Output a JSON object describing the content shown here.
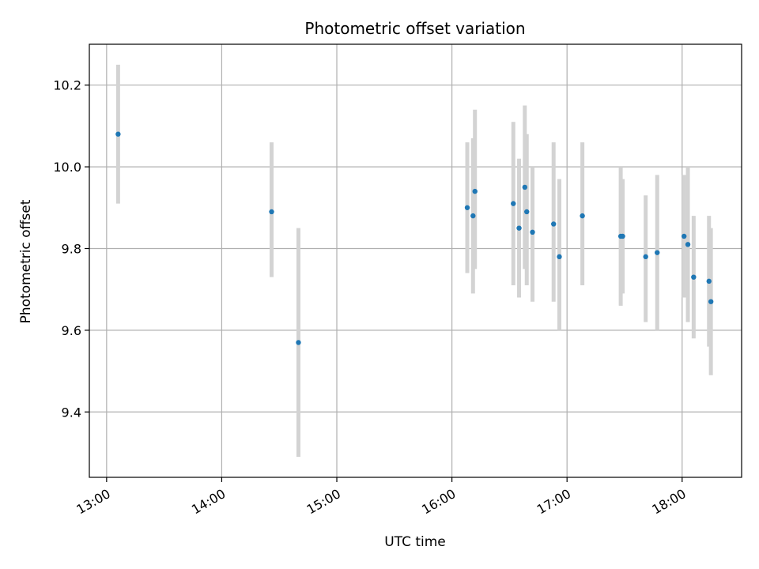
{
  "chart_data": {
    "type": "scatter",
    "title": "Photometric offset variation",
    "xlabel": "UTC time",
    "ylabel": "Photometric offset",
    "x_ticks": [
      "13:00",
      "14:00",
      "15:00",
      "16:00",
      "17:00",
      "18:00"
    ],
    "y_ticks": [
      "9.4",
      "9.6",
      "9.8",
      "10.0",
      "10.2"
    ],
    "xlim": [
      "12:51",
      "18:31"
    ],
    "ylim": [
      9.24,
      10.3
    ],
    "grid": true,
    "colors": {
      "point": "#1f77b4",
      "errorbar": "#d3d3d3",
      "grid": "#b0b0b0"
    },
    "points": [
      {
        "x": "13:06",
        "y": 10.08,
        "err_low": 9.91,
        "err_high": 10.25
      },
      {
        "x": "14:26",
        "y": 9.89,
        "err_low": 9.73,
        "err_high": 10.06
      },
      {
        "x": "14:40",
        "y": 9.57,
        "err_low": 9.29,
        "err_high": 9.85
      },
      {
        "x": "16:08",
        "y": 9.9,
        "err_low": 9.74,
        "err_high": 10.06
      },
      {
        "x": "16:11",
        "y": 9.88,
        "err_low": 9.69,
        "err_high": 10.07
      },
      {
        "x": "16:12",
        "y": 9.94,
        "err_low": 9.75,
        "err_high": 10.14
      },
      {
        "x": "16:32",
        "y": 9.91,
        "err_low": 9.71,
        "err_high": 10.11
      },
      {
        "x": "16:35",
        "y": 9.85,
        "err_low": 9.68,
        "err_high": 10.02
      },
      {
        "x": "16:38",
        "y": 9.95,
        "err_low": 9.75,
        "err_high": 10.15
      },
      {
        "x": "16:39",
        "y": 9.89,
        "err_low": 9.71,
        "err_high": 10.08
      },
      {
        "x": "16:42",
        "y": 9.84,
        "err_low": 9.67,
        "err_high": 10.0
      },
      {
        "x": "16:53",
        "y": 9.86,
        "err_low": 9.67,
        "err_high": 10.06
      },
      {
        "x": "16:56",
        "y": 9.78,
        "err_low": 9.6,
        "err_high": 9.97
      },
      {
        "x": "17:08",
        "y": 9.88,
        "err_low": 9.71,
        "err_high": 10.06
      },
      {
        "x": "17:28",
        "y": 9.83,
        "err_low": 9.66,
        "err_high": 10.0
      },
      {
        "x": "17:29",
        "y": 9.83,
        "err_low": 9.69,
        "err_high": 9.97
      },
      {
        "x": "17:41",
        "y": 9.78,
        "err_low": 9.62,
        "err_high": 9.93
      },
      {
        "x": "17:47",
        "y": 9.79,
        "err_low": 9.6,
        "err_high": 9.98
      },
      {
        "x": "18:01",
        "y": 9.83,
        "err_low": 9.68,
        "err_high": 9.98
      },
      {
        "x": "18:03",
        "y": 9.81,
        "err_low": 9.62,
        "err_high": 10.0
      },
      {
        "x": "18:06",
        "y": 9.73,
        "err_low": 9.58,
        "err_high": 9.88
      },
      {
        "x": "18:14",
        "y": 9.72,
        "err_low": 9.56,
        "err_high": 9.88
      },
      {
        "x": "18:15",
        "y": 9.67,
        "err_low": 9.49,
        "err_high": 9.85
      }
    ]
  }
}
